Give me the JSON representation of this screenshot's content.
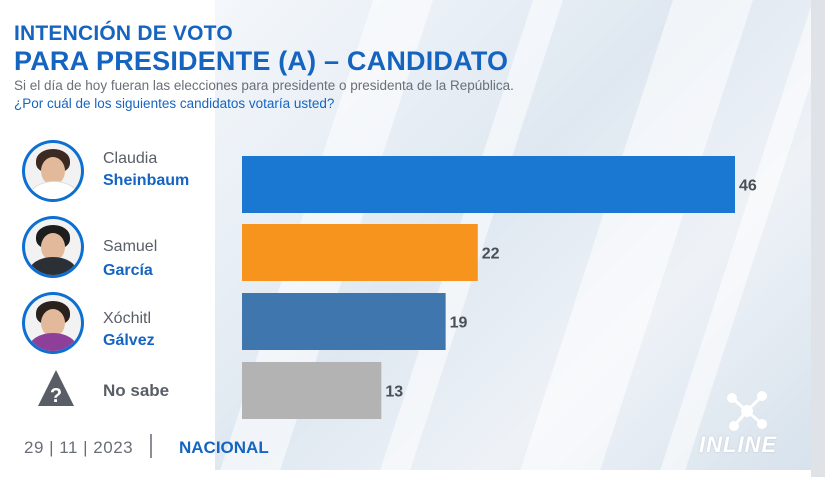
{
  "header": {
    "title_line1": "INTENCIÓN DE VOTO",
    "title_line2": "PARA PRESIDENTE (A) – CANDIDATO",
    "question_line1": "Si el día de hoy fueran las elecciones para presidente o presidenta de la República.",
    "question_line2": "¿Por cuál de los siguientes  candidatos votaría usted?"
  },
  "candidates": [
    {
      "first": "Claudia",
      "last": "Sheinbaum"
    },
    {
      "first": "Samuel",
      "last": "García"
    },
    {
      "first": "Xóchitl",
      "last": "Gálvez"
    },
    {
      "label": "No sabe"
    }
  ],
  "footer": {
    "date": "29 | 11 | 2023",
    "scope": "NACIONAL",
    "logo": "INLINE"
  },
  "chart_data": {
    "type": "bar",
    "orientation": "horizontal",
    "categories": [
      "Claudia Sheinbaum",
      "Samuel García",
      "Xóchitl Gálvez",
      "No sabe"
    ],
    "values": [
      46,
      22,
      19,
      13
    ],
    "colors": [
      "#1a78d2",
      "#f7941d",
      "#3f76ad",
      "#b3b3b3"
    ],
    "xlim": [
      0,
      46
    ],
    "grid": false
  }
}
